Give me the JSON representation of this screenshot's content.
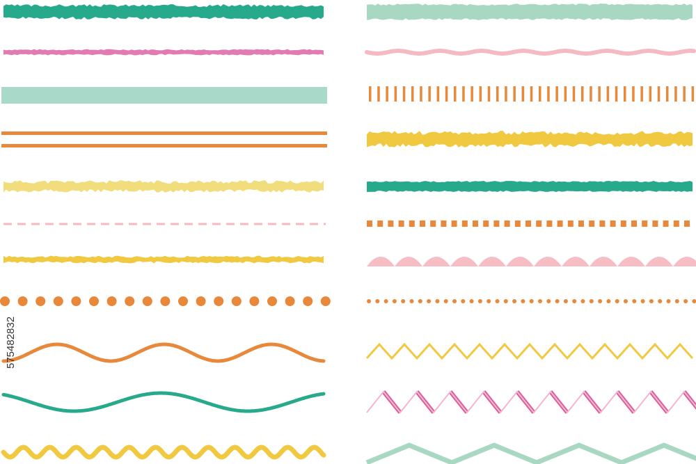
{
  "image_id": "575482832"
}
